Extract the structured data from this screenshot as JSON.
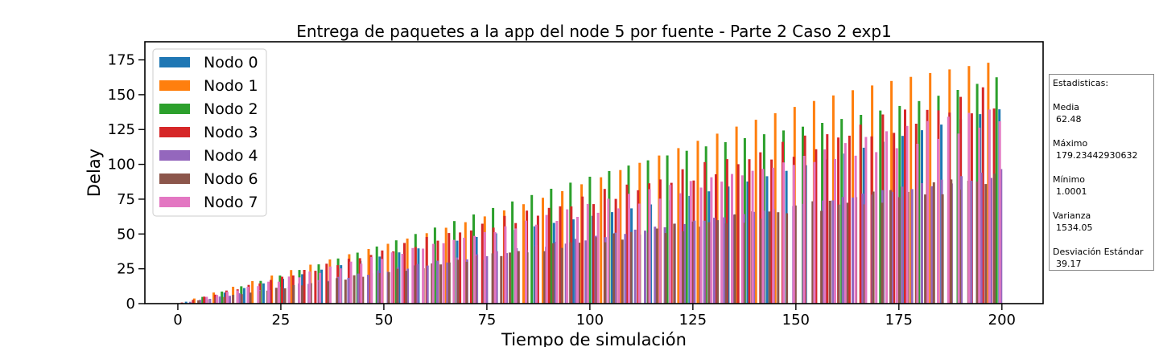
{
  "chart_data": {
    "type": "bar",
    "title": "Entrega de paquetes a la app del node 5 por fuente - Parte 2 Caso 2 exp1",
    "xlabel": "Tiempo de simulación",
    "ylabel": "Delay",
    "xlim": [
      -8,
      210
    ],
    "ylim": [
      0,
      188
    ],
    "xticks": [
      0,
      25,
      50,
      75,
      100,
      125,
      150,
      175,
      200
    ],
    "yticks": [
      0,
      25,
      50,
      75,
      100,
      125,
      150,
      175
    ],
    "legend_position": "upper-left",
    "series": [
      {
        "name": "Nodo 0",
        "color": "#1f77b4",
        "slope": 0.66,
        "start": 2,
        "step": 4.7
      },
      {
        "name": "Nodo 1",
        "color": "#ff7f0e",
        "slope": 0.89,
        "start": 4,
        "step": 4.7
      },
      {
        "name": "Nodo 2",
        "color": "#2ca02c",
        "slope": 0.86,
        "start": 6,
        "step": 4.7
      },
      {
        "name": "Nodo 3",
        "color": "#d62728",
        "slope": 0.75,
        "start": 1,
        "step": 2.7
      },
      {
        "name": "Nodo 4",
        "color": "#9467bd",
        "slope": 0.47,
        "start": 3,
        "step": 2.4
      },
      {
        "name": "Nodo 6",
        "color": "#8c564b",
        "slope": 0.45,
        "start": 5,
        "step": 2.1
      },
      {
        "name": "Nodo 7",
        "color": "#e377c2",
        "slope": 0.68,
        "start": 7,
        "step": 2.5
      }
    ]
  },
  "stats": {
    "heading": "Estadisticas:",
    "media_label": "Media",
    "media_value": "62.48",
    "max_label": "Máximo",
    "max_value": "179.23442930632",
    "min_label": "Mínimo",
    "min_value": "1.0001",
    "var_label": "Varianza",
    "var_value": "1534.05",
    "std_label": "Desviación Estándar",
    "std_value": "39.17"
  }
}
